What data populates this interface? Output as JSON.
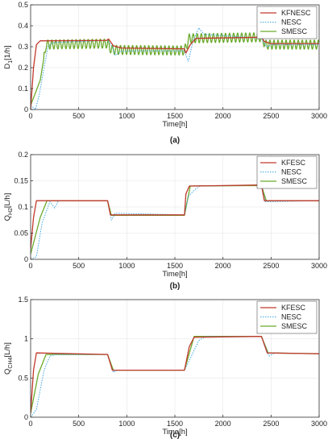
{
  "figure": {
    "panel_labels": [
      "(a)",
      "(b)",
      "(c)"
    ]
  },
  "colors": {
    "KFNESC": "#c0392b",
    "KFESC": "#c0392b",
    "NESC": "#3fa7e0",
    "SMESC": "#6aaa2c",
    "axis": "#333333",
    "grid": "#e6e6e6"
  },
  "chart_data": [
    {
      "type": "line",
      "xlabel": "Time[h]",
      "ylabel": "D",
      "ylabel_sub": "1",
      "ylabel_suffix": "[1/h]",
      "xlim": [
        0,
        3000
      ],
      "ylim": [
        0,
        0.5
      ],
      "xticks": [
        0,
        500,
        1000,
        1500,
        2000,
        2500,
        3000
      ],
      "yticks": [
        0,
        0.1,
        0.2,
        0.3,
        0.4,
        0.5
      ],
      "ytick_labels": [
        "0",
        "0.1",
        "0.2",
        "0.3",
        "0.4",
        "0.5"
      ],
      "legend": "top-right",
      "series": [
        {
          "name": "KFNESC",
          "style": "solid",
          "points": [
            [
              0,
              0.0
            ],
            [
              30,
              0.2
            ],
            [
              60,
              0.31
            ],
            [
              100,
              0.328
            ],
            [
              790,
              0.33
            ],
            [
              810,
              0.337
            ],
            [
              860,
              0.305
            ],
            [
              940,
              0.294
            ],
            [
              1600,
              0.29
            ],
            [
              1615,
              0.27
            ],
            [
              1660,
              0.31
            ],
            [
              1720,
              0.34
            ],
            [
              2400,
              0.345
            ],
            [
              2430,
              0.325
            ],
            [
              2500,
              0.315
            ],
            [
              3000,
              0.315
            ]
          ]
        },
        {
          "name": "NESC",
          "style": "dotted",
          "points": [
            [
              0,
              0.02
            ],
            [
              50,
              0.0
            ],
            [
              90,
              0.07
            ],
            [
              140,
              0.2
            ],
            [
              180,
              0.3
            ],
            [
              230,
              0.32
            ],
            [
              800,
              0.33
            ],
            [
              850,
              0.3
            ],
            [
              880,
              0.26
            ],
            [
              950,
              0.28
            ],
            [
              1600,
              0.28
            ],
            [
              1640,
              0.23
            ],
            [
              1690,
              0.33
            ],
            [
              1750,
              0.39
            ],
            [
              1800,
              0.36
            ],
            [
              2400,
              0.34
            ],
            [
              2450,
              0.3
            ],
            [
              2520,
              0.31
            ],
            [
              3000,
              0.31
            ]
          ]
        },
        {
          "name": "SMESC",
          "style": "oscillating",
          "osc_amp": 0.022,
          "osc_period": 42,
          "points": [
            [
              0,
              0.02
            ],
            [
              100,
              0.14
            ],
            [
              160,
              0.31
            ],
            [
              800,
              0.315
            ],
            [
              840,
              0.285
            ],
            [
              1600,
              0.282
            ],
            [
              1650,
              0.34
            ],
            [
              2400,
              0.345
            ],
            [
              2440,
              0.31
            ],
            [
              3000,
              0.31
            ]
          ]
        }
      ]
    },
    {
      "type": "line",
      "xlabel": "Time[h]",
      "ylabel": "Q",
      "ylabel_sub": "H2",
      "ylabel_suffix": "[L/h]",
      "xlim": [
        0,
        3000
      ],
      "ylim": [
        0,
        0.2
      ],
      "xticks": [
        0,
        500,
        1000,
        1500,
        2000,
        2500,
        3000
      ],
      "yticks": [
        0,
        0.05,
        0.1,
        0.15,
        0.2
      ],
      "ytick_labels": [
        "0",
        "0.05",
        "0.1",
        "0.15",
        "0.2"
      ],
      "legend": "top-right",
      "series": [
        {
          "name": "KFESC",
          "style": "solid",
          "points": [
            [
              0,
              0.02
            ],
            [
              30,
              0.08
            ],
            [
              60,
              0.112
            ],
            [
              800,
              0.112
            ],
            [
              830,
              0.085
            ],
            [
              1600,
              0.085
            ],
            [
              1615,
              0.125
            ],
            [
              1650,
              0.14
            ],
            [
              2400,
              0.142
            ],
            [
              2430,
              0.112
            ],
            [
              3000,
              0.112
            ]
          ]
        },
        {
          "name": "NESC",
          "style": "dotted",
          "points": [
            [
              0,
              0.0
            ],
            [
              60,
              0.005
            ],
            [
              120,
              0.07
            ],
            [
              200,
              0.11
            ],
            [
              250,
              0.098
            ],
            [
              290,
              0.112
            ],
            [
              800,
              0.112
            ],
            [
              840,
              0.075
            ],
            [
              880,
              0.088
            ],
            [
              1600,
              0.085
            ],
            [
              1640,
              0.12
            ],
            [
              1700,
              0.132
            ],
            [
              1760,
              0.14
            ],
            [
              2400,
              0.142
            ],
            [
              2440,
              0.11
            ],
            [
              3000,
              0.112
            ]
          ]
        },
        {
          "name": "SMESC",
          "style": "solid",
          "points": [
            [
              0,
              0.01
            ],
            [
              100,
              0.08
            ],
            [
              170,
              0.112
            ],
            [
              800,
              0.112
            ],
            [
              840,
              0.084
            ],
            [
              1600,
              0.084
            ],
            [
              1660,
              0.14
            ],
            [
              2400,
              0.141
            ],
            [
              2450,
              0.112
            ],
            [
              3000,
              0.112
            ]
          ]
        }
      ]
    },
    {
      "type": "line",
      "xlabel": "Time[h]",
      "ylabel": "Q",
      "ylabel_sub": "CH4",
      "ylabel_suffix": "[L/h]",
      "xlim": [
        0,
        3000
      ],
      "ylim": [
        0,
        1.5
      ],
      "xticks": [
        0,
        500,
        1000,
        1500,
        2000,
        2500,
        3000
      ],
      "yticks": [
        0,
        0.5,
        1,
        1.5
      ],
      "ytick_labels": [
        "0",
        "0.5",
        "1",
        "1.5"
      ],
      "legend": "top-right",
      "series": [
        {
          "name": "KFESC",
          "style": "solid",
          "points": [
            [
              0,
              0.05
            ],
            [
              30,
              0.6
            ],
            [
              60,
              0.82
            ],
            [
              800,
              0.8
            ],
            [
              850,
              0.6
            ],
            [
              1600,
              0.6
            ],
            [
              1650,
              0.9
            ],
            [
              1700,
              1.02
            ],
            [
              2400,
              1.03
            ],
            [
              2460,
              0.82
            ],
            [
              3000,
              0.81
            ]
          ]
        },
        {
          "name": "NESC",
          "style": "dotted",
          "points": [
            [
              0,
              0.0
            ],
            [
              60,
              0.1
            ],
            [
              140,
              0.6
            ],
            [
              200,
              0.78
            ],
            [
              260,
              0.8
            ],
            [
              800,
              0.8
            ],
            [
              860,
              0.57
            ],
            [
              900,
              0.6
            ],
            [
              1600,
              0.6
            ],
            [
              1660,
              0.75
            ],
            [
              1750,
              0.98
            ],
            [
              1820,
              1.03
            ],
            [
              2400,
              1.03
            ],
            [
              2480,
              0.78
            ],
            [
              2540,
              0.82
            ],
            [
              3000,
              0.81
            ]
          ]
        },
        {
          "name": "SMESC",
          "style": "solid",
          "points": [
            [
              0,
              0.05
            ],
            [
              80,
              0.55
            ],
            [
              160,
              0.8
            ],
            [
              800,
              0.8
            ],
            [
              860,
              0.6
            ],
            [
              1600,
              0.6
            ],
            [
              1700,
              1.03
            ],
            [
              2400,
              1.03
            ],
            [
              2470,
              0.82
            ],
            [
              3000,
              0.81
            ]
          ]
        }
      ]
    }
  ]
}
